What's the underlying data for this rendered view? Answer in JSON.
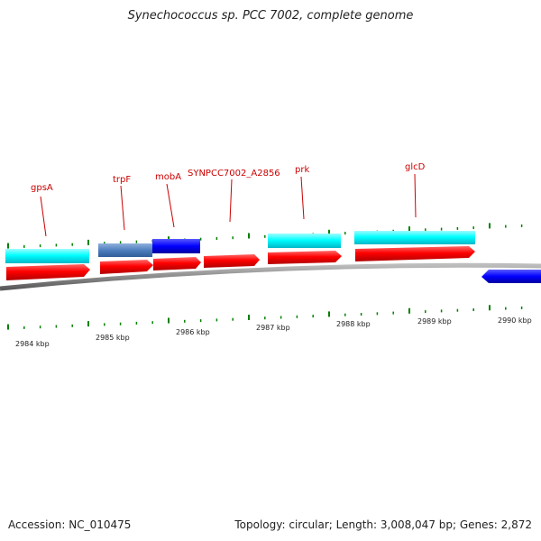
{
  "title": "Synechococcus sp. PCC 7002, complete genome",
  "footer": {
    "accession": "Accession: NC_010475",
    "summary": "Topology: circular; Length: 3,008,047 bp; Genes: 2,872"
  },
  "colors": {
    "gene": "#ff0000",
    "cds": "#00ffff",
    "cds_dark": "#4f7fbf",
    "blue": "#0000ff",
    "label": "#cc0000",
    "tick": "#008000",
    "backbone": "#888888"
  },
  "scale": {
    "unit": "kbp",
    "labels": [
      "2984 kbp",
      "2985 kbp",
      "2986 kbp",
      "2987 kbp",
      "2988 kbp",
      "2989 kbp",
      "2990 kbp"
    ]
  },
  "genes": [
    {
      "label": "gpsA",
      "kind": "gene"
    },
    {
      "label": "trpF",
      "kind": "gene"
    },
    {
      "label": "mobA",
      "kind": "gene"
    },
    {
      "label": "SYNPCC7002_A2856",
      "kind": "gene"
    },
    {
      "label": "prk",
      "kind": "gene"
    },
    {
      "label": "glcD",
      "kind": "gene"
    }
  ]
}
